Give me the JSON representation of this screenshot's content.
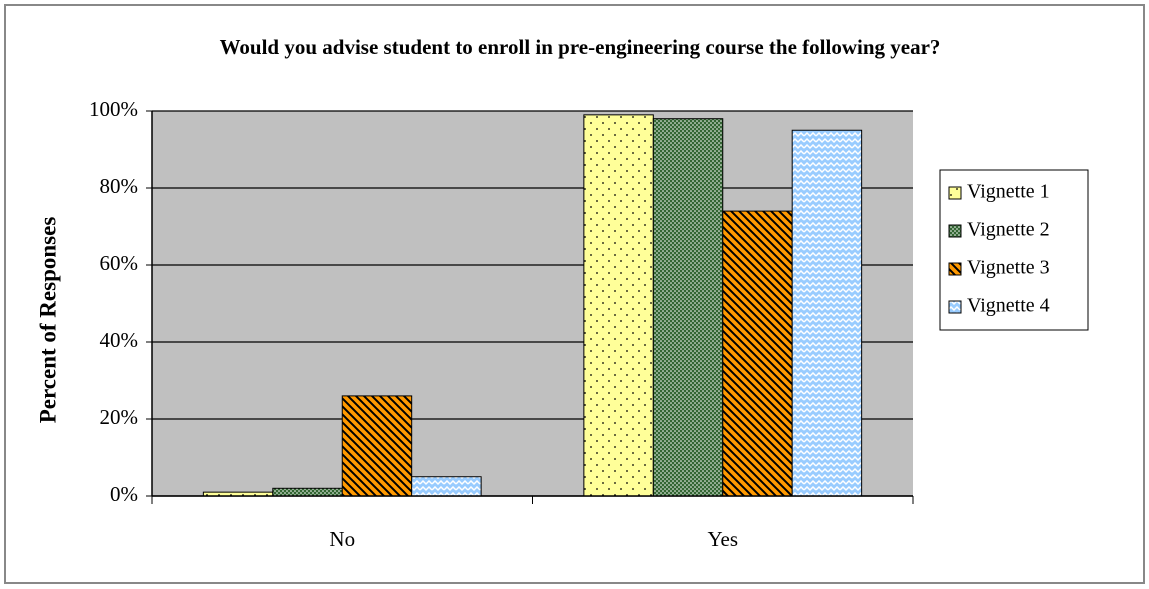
{
  "chart_data": {
    "type": "bar",
    "title": "Would you advise student to enroll in pre-engineering course the following year?",
    "ylabel": "Percent of Responses",
    "categories": [
      "No",
      "Yes"
    ],
    "series": [
      {
        "name": "Vignette 1",
        "color": "#ffff99",
        "values": [
          1,
          99
        ]
      },
      {
        "name": "Vignette 2",
        "color": "#336633",
        "values": [
          2,
          98
        ]
      },
      {
        "name": "Vignette 3",
        "color": "#ff9900",
        "values": [
          26,
          74
        ]
      },
      {
        "name": "Vignette 4",
        "color": "#99ccff",
        "values": [
          5,
          95
        ]
      }
    ],
    "ylim": [
      0,
      100
    ],
    "yticks": [
      {
        "value": 0,
        "label": "0%"
      },
      {
        "value": 20,
        "label": "20%"
      },
      {
        "value": 40,
        "label": "40%"
      },
      {
        "value": 60,
        "label": "60%"
      },
      {
        "value": 80,
        "label": "80%"
      },
      {
        "value": 100,
        "label": "100%"
      }
    ],
    "grid": true,
    "legend": "right"
  }
}
